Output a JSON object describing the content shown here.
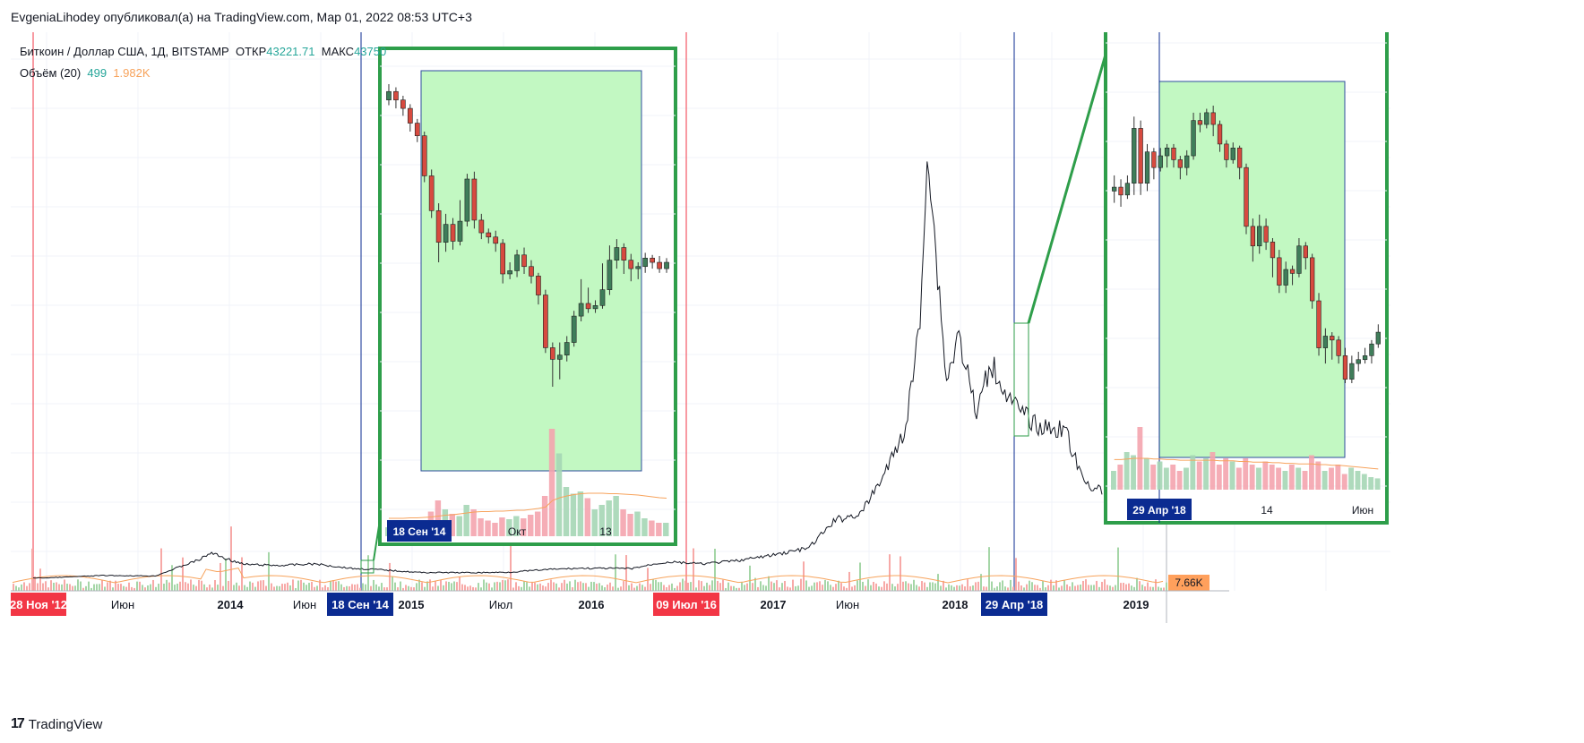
{
  "header": {
    "attribution": "EvgeniaLihodey опубликовал(а) на TradingView.com, Мар 01, 2022 08:53 UTC+3"
  },
  "legend": {
    "symbol": "Биткоин / Доллар США, 1Д, BITSTAMP",
    "open_label": "ОТКР",
    "open_value": "43221.71",
    "high_label": "МАКС",
    "high_value": "43750",
    "volume_label": "Объём (20)",
    "volume_value": "499",
    "volume_ma": "1.982K"
  },
  "price_badge": "7.66K",
  "footer": {
    "brand": "TradingView"
  },
  "colors": {
    "up": "#26a69a",
    "down": "#ef5350",
    "zoom_fill": "#c2f8c2",
    "zoom_border": "#2e9e4a",
    "red_badge": "#f23645",
    "blue_badge": "#0b2b91",
    "price_badge": "#ffa05c",
    "line": "#131722"
  },
  "chart_data": [
    {
      "type": "line",
      "title": "",
      "x_axis_labels": [
        "28 Ноя '12",
        "Июн",
        "2014",
        "Июн",
        "18 Сен '14",
        "2015",
        "Июл",
        "2016",
        "09 Июл '16",
        "2017",
        "Июн",
        "2018",
        "29 Апр '18",
        "2019"
      ],
      "x": [
        2012.91,
        2013.0,
        2013.3,
        2013.6,
        2013.85,
        2013.92,
        2014.0,
        2014.1,
        2014.3,
        2014.5,
        2014.72,
        2014.85,
        2015.0,
        2015.1,
        2015.4,
        2015.6,
        2015.83,
        2016.0,
        2016.3,
        2016.45,
        2016.52,
        2016.7,
        2016.9,
        2017.1,
        2017.3,
        2017.45,
        2017.6,
        2017.75,
        2017.85,
        2017.93,
        2017.97,
        2018.02,
        2018.08,
        2018.15,
        2018.25,
        2018.33,
        2018.45,
        2018.6,
        2018.75,
        2018.85,
        2018.97
      ],
      "y": [
        12,
        20,
        120,
        100,
        800,
        1100,
        850,
        600,
        550,
        620,
        420,
        380,
        300,
        250,
        240,
        260,
        380,
        430,
        420,
        650,
        700,
        620,
        760,
        1000,
        1300,
        2500,
        2800,
        4800,
        6500,
        11000,
        18500,
        14000,
        8500,
        10500,
        7000,
        9300,
        7500,
        6500,
        6400,
        4200,
        3700
      ],
      "volume_badge": "7.66K"
    },
    {
      "type": "candlestick",
      "title": "",
      "x_axis_labels": [
        "18 Сен '14",
        "Окт",
        "13"
      ],
      "candles": [
        {
          "o": 470,
          "c": 478,
          "h": 485,
          "l": 465
        },
        {
          "o": 478,
          "c": 470,
          "h": 482,
          "l": 462
        },
        {
          "o": 470,
          "c": 462,
          "h": 474,
          "l": 455
        },
        {
          "o": 462,
          "c": 448,
          "h": 466,
          "l": 440
        },
        {
          "o": 448,
          "c": 436,
          "h": 452,
          "l": 430
        },
        {
          "o": 436,
          "c": 398,
          "h": 440,
          "l": 392
        },
        {
          "o": 398,
          "c": 365,
          "h": 404,
          "l": 358
        },
        {
          "o": 365,
          "c": 335,
          "h": 372,
          "l": 316
        },
        {
          "o": 335,
          "c": 352,
          "h": 362,
          "l": 326
        },
        {
          "o": 352,
          "c": 336,
          "h": 358,
          "l": 328
        },
        {
          "o": 336,
          "c": 355,
          "h": 375,
          "l": 332
        },
        {
          "o": 355,
          "c": 395,
          "h": 400,
          "l": 350
        },
        {
          "o": 395,
          "c": 356,
          "h": 402,
          "l": 348
        },
        {
          "o": 356,
          "c": 344,
          "h": 362,
          "l": 338
        },
        {
          "o": 344,
          "c": 340,
          "h": 348,
          "l": 334
        },
        {
          "o": 340,
          "c": 334,
          "h": 346,
          "l": 326
        },
        {
          "o": 334,
          "c": 305,
          "h": 338,
          "l": 296
        },
        {
          "o": 305,
          "c": 308,
          "h": 316,
          "l": 300
        },
        {
          "o": 308,
          "c": 323,
          "h": 328,
          "l": 302
        },
        {
          "o": 323,
          "c": 312,
          "h": 330,
          "l": 305
        },
        {
          "o": 312,
          "c": 303,
          "h": 318,
          "l": 296
        },
        {
          "o": 303,
          "c": 285,
          "h": 306,
          "l": 276
        },
        {
          "o": 285,
          "c": 235,
          "h": 290,
          "l": 230
        },
        {
          "o": 235,
          "c": 224,
          "h": 240,
          "l": 198
        },
        {
          "o": 224,
          "c": 228,
          "h": 240,
          "l": 205
        },
        {
          "o": 228,
          "c": 240,
          "h": 246,
          "l": 222
        },
        {
          "o": 240,
          "c": 265,
          "h": 270,
          "l": 236
        },
        {
          "o": 265,
          "c": 277,
          "h": 300,
          "l": 260
        },
        {
          "o": 277,
          "c": 272,
          "h": 292,
          "l": 268
        },
        {
          "o": 272,
          "c": 275,
          "h": 280,
          "l": 268
        },
        {
          "o": 275,
          "c": 290,
          "h": 315,
          "l": 272
        },
        {
          "o": 290,
          "c": 318,
          "h": 332,
          "l": 285
        },
        {
          "o": 318,
          "c": 330,
          "h": 338,
          "l": 310
        },
        {
          "o": 330,
          "c": 318,
          "h": 334,
          "l": 305
        },
        {
          "o": 318,
          "c": 310,
          "h": 324,
          "l": 298
        },
        {
          "o": 310,
          "c": 312,
          "h": 316,
          "l": 300
        },
        {
          "o": 312,
          "c": 320,
          "h": 325,
          "l": 306
        },
        {
          "o": 320,
          "c": 316,
          "h": 323,
          "l": 310
        },
        {
          "o": 316,
          "c": 310,
          "h": 322,
          "l": 306
        },
        {
          "o": 310,
          "c": 316,
          "h": 320,
          "l": 306
        }
      ],
      "volumes": [
        20,
        28,
        22,
        30,
        25,
        35,
        55,
        80,
        60,
        50,
        45,
        70,
        60,
        40,
        35,
        30,
        42,
        38,
        45,
        40,
        48,
        55,
        90,
        240,
        185,
        110,
        95,
        100,
        85,
        60,
        70,
        80,
        90,
        60,
        50,
        55,
        40,
        35,
        30,
        30
      ],
      "volume_ma": [
        40,
        40,
        40,
        41,
        41,
        42,
        43,
        45,
        47,
        48,
        50,
        52,
        54,
        55,
        55,
        56,
        56,
        57,
        58,
        58,
        60,
        62,
        65,
        80,
        86,
        90,
        93,
        95,
        96,
        96,
        96,
        95,
        95,
        94,
        93,
        92,
        90,
        88,
        86,
        85
      ]
    },
    {
      "type": "candlestick",
      "title": "",
      "x_axis_labels": [
        "29 Апр '18",
        "14",
        "Июн"
      ],
      "candles": [
        {
          "o": 8900,
          "c": 8950,
          "h": 9100,
          "l": 8750
        },
        {
          "o": 8950,
          "c": 8850,
          "h": 9050,
          "l": 8700
        },
        {
          "o": 8850,
          "c": 9000,
          "h": 9100,
          "l": 8800
        },
        {
          "o": 9000,
          "c": 9700,
          "h": 9850,
          "l": 8850
        },
        {
          "o": 9700,
          "c": 9000,
          "h": 9800,
          "l": 8850
        },
        {
          "o": 9000,
          "c": 9400,
          "h": 9500,
          "l": 8900
        },
        {
          "o": 9400,
          "c": 9200,
          "h": 9450,
          "l": 9050
        },
        {
          "o": 9200,
          "c": 9350,
          "h": 9450,
          "l": 9150
        },
        {
          "o": 9350,
          "c": 9450,
          "h": 9500,
          "l": 9200
        },
        {
          "o": 9450,
          "c": 9300,
          "h": 9500,
          "l": 9200
        },
        {
          "o": 9300,
          "c": 9200,
          "h": 9350,
          "l": 9050
        },
        {
          "o": 9200,
          "c": 9350,
          "h": 9420,
          "l": 9100
        },
        {
          "o": 9350,
          "c": 9800,
          "h": 9900,
          "l": 9300
        },
        {
          "o": 9800,
          "c": 9750,
          "h": 9900,
          "l": 9650
        },
        {
          "o": 9750,
          "c": 9900,
          "h": 9950,
          "l": 9700
        },
        {
          "o": 9900,
          "c": 9750,
          "h": 9990,
          "l": 9600
        },
        {
          "o": 9750,
          "c": 9500,
          "h": 9800,
          "l": 9400
        },
        {
          "o": 9500,
          "c": 9300,
          "h": 9550,
          "l": 9200
        },
        {
          "o": 9300,
          "c": 9450,
          "h": 9520,
          "l": 9250
        },
        {
          "o": 9450,
          "c": 9200,
          "h": 9480,
          "l": 9050
        },
        {
          "o": 9200,
          "c": 8450,
          "h": 9250,
          "l": 8350
        },
        {
          "o": 8450,
          "c": 8200,
          "h": 8550,
          "l": 8000
        },
        {
          "o": 8200,
          "c": 8450,
          "h": 8600,
          "l": 8100
        },
        {
          "o": 8450,
          "c": 8250,
          "h": 8550,
          "l": 8150
        },
        {
          "o": 8250,
          "c": 8050,
          "h": 8300,
          "l": 7800
        },
        {
          "o": 8050,
          "c": 7700,
          "h": 8150,
          "l": 7600
        },
        {
          "o": 7700,
          "c": 7900,
          "h": 8000,
          "l": 7600
        },
        {
          "o": 7900,
          "c": 7850,
          "h": 7950,
          "l": 7700
        },
        {
          "o": 7850,
          "c": 8200,
          "h": 8300,
          "l": 7800
        },
        {
          "o": 8200,
          "c": 8050,
          "h": 8250,
          "l": 7900
        },
        {
          "o": 8050,
          "c": 7500,
          "h": 8100,
          "l": 7400
        },
        {
          "o": 7500,
          "c": 6900,
          "h": 7600,
          "l": 6800
        },
        {
          "o": 6900,
          "c": 7050,
          "h": 7150,
          "l": 6700
        },
        {
          "o": 7050,
          "c": 7000,
          "h": 7100,
          "l": 6750
        },
        {
          "o": 7000,
          "c": 6800,
          "h": 7050,
          "l": 6700
        },
        {
          "o": 6800,
          "c": 6500,
          "h": 6900,
          "l": 6450
        },
        {
          "o": 6500,
          "c": 6700,
          "h": 6800,
          "l": 6450
        },
        {
          "o": 6700,
          "c": 6750,
          "h": 6850,
          "l": 6600
        },
        {
          "o": 6750,
          "c": 6800,
          "h": 6900,
          "l": 6700
        },
        {
          "o": 6800,
          "c": 6950,
          "h": 7000,
          "l": 6700
        },
        {
          "o": 6950,
          "c": 7100,
          "h": 7200,
          "l": 6900
        }
      ],
      "volumes": [
        30,
        40,
        60,
        55,
        100,
        50,
        40,
        45,
        35,
        40,
        30,
        35,
        55,
        45,
        50,
        60,
        40,
        50,
        45,
        35,
        50,
        40,
        35,
        45,
        40,
        35,
        30,
        40,
        35,
        30,
        55,
        45,
        30,
        35,
        40,
        25,
        35,
        30,
        25,
        20,
        18
      ],
      "volume_ma": [
        48,
        48,
        49,
        50,
        50,
        50,
        49,
        49,
        48,
        48,
        47,
        47,
        47,
        47,
        47,
        47,
        46,
        46,
        46,
        45,
        45,
        44,
        44,
        44,
        43,
        43,
        42,
        42,
        41,
        41,
        41,
        40,
        40,
        39,
        39,
        38,
        37,
        36,
        35,
        34,
        33
      ]
    }
  ]
}
